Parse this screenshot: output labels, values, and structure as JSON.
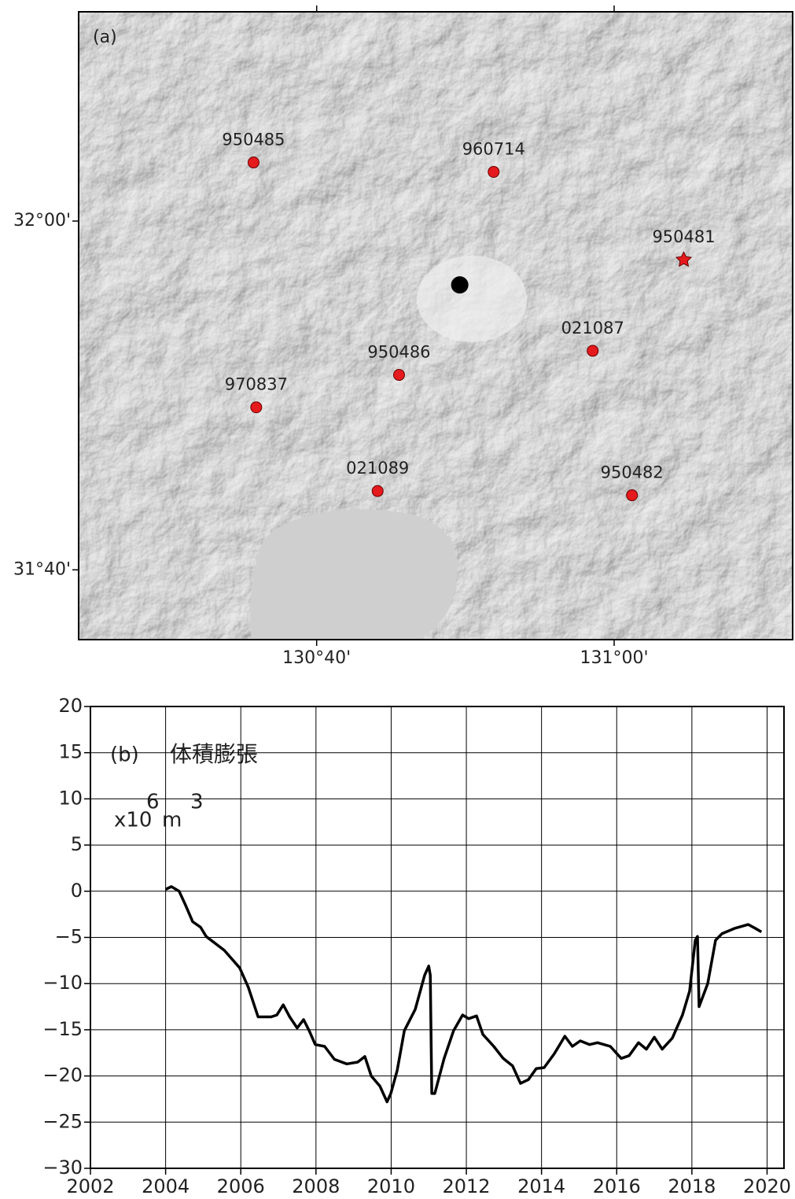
{
  "chart_data": [
    {
      "type": "scatter",
      "panel_label": "(a)",
      "labels": [
        "950485",
        "960714",
        "950481",
        "021087",
        "950486",
        "970837",
        "021089",
        "950482"
      ],
      "x": [
        130.596,
        130.865,
        131.078,
        130.976,
        130.759,
        130.599,
        130.735,
        131.02
      ],
      "y": [
        32.056,
        32.047,
        31.963,
        31.876,
        31.853,
        31.822,
        31.742,
        31.738
      ],
      "markers": [
        "circle",
        "circle",
        "star",
        "circle",
        "circle",
        "circle",
        "circle",
        "circle"
      ],
      "color": "#e41a1c",
      "vent": {
        "x": 130.827,
        "y": 31.939,
        "color": "#000000"
      },
      "xlim": [
        130.4,
        131.2
      ],
      "ylim": [
        31.6,
        32.2
      ],
      "xticks": [
        {
          "value": 130.6667,
          "label": "130°40'"
        },
        {
          "value": 131,
          "label": "131°00'"
        }
      ],
      "yticks": [
        {
          "value": 32,
          "label": "32°00'"
        },
        {
          "value": 31.6667,
          "label": "31°40'"
        }
      ]
    },
    {
      "type": "line",
      "panel_label": "(b)",
      "annotation": "体積膨張",
      "unit": {
        "base": "x10",
        "exponent": "6",
        "unit": "m",
        "unit_exponent": "3"
      },
      "color": "#000000",
      "x": [
        2004.0,
        2004.15,
        2004.36,
        2004.53,
        2004.72,
        2004.93,
        2005.08,
        2005.56,
        2005.97,
        2006.2,
        2006.46,
        2006.81,
        2006.96,
        2007.13,
        2007.3,
        2007.5,
        2007.67,
        2007.82,
        2007.98,
        2008.23,
        2008.49,
        2008.82,
        2009.11,
        2009.3,
        2009.47,
        2009.7,
        2009.89,
        2009.99,
        2010.16,
        2010.35,
        2010.64,
        2010.89,
        2011.0,
        2011.04,
        2011.08,
        2011.16,
        2011.41,
        2011.66,
        2011.9,
        2012.06,
        2012.27,
        2012.44,
        2012.73,
        2012.98,
        2013.23,
        2013.44,
        2013.65,
        2013.86,
        2014.07,
        2014.34,
        2014.62,
        2014.82,
        2015.03,
        2015.28,
        2015.49,
        2015.83,
        2016.12,
        2016.33,
        2016.58,
        2016.79,
        2017.0,
        2017.21,
        2017.48,
        2017.75,
        2017.94,
        2018.09,
        2018.15,
        2018.19,
        2018.42,
        2018.63,
        2018.8,
        2019.15,
        2019.5,
        2019.68,
        2019.85
      ],
      "values": [
        0.2,
        0.5,
        0,
        -1.5,
        -3.3,
        -3.9,
        -4.9,
        -6.4,
        -8.3,
        -10.4,
        -13.6,
        -13.6,
        -13.4,
        -12.3,
        -13.6,
        -14.8,
        -13.9,
        -15.1,
        -16.6,
        -16.8,
        -18.2,
        -18.7,
        -18.5,
        -17.9,
        -20.0,
        -21.1,
        -22.8,
        -21.9,
        -19.4,
        -15.1,
        -12.8,
        -9.1,
        -8.1,
        -9.1,
        -21.9,
        -21.9,
        -18.1,
        -15.1,
        -13.4,
        -13.8,
        -13.5,
        -15.5,
        -16.8,
        -18.1,
        -18.9,
        -20.8,
        -20.4,
        -19.2,
        -19.1,
        -17.6,
        -15.7,
        -16.8,
        -16.2,
        -16.6,
        -16.4,
        -16.8,
        -18.1,
        -17.8,
        -16.4,
        -17.1,
        -15.8,
        -17.1,
        -15.9,
        -13.4,
        -10.8,
        -5.3,
        -4.9,
        -12.5,
        -10.0,
        -5.3,
        -4.6,
        -4.0,
        -3.6,
        -4.0,
        -4.4
      ],
      "xlim": [
        2002,
        2020.45
      ],
      "ylim": [
        -30,
        20
      ],
      "xticks": [
        2002,
        2004,
        2006,
        2008,
        2010,
        2012,
        2014,
        2016,
        2018,
        2020
      ],
      "yticks": [
        20,
        15,
        10,
        5,
        0,
        {
          "value": -5,
          "label": "−5"
        },
        {
          "value": -10,
          "label": "−10"
        },
        {
          "value": -15,
          "label": "−15"
        },
        {
          "value": -20,
          "label": "−20"
        },
        {
          "value": -25,
          "label": "−25"
        },
        {
          "value": -30,
          "label": "−30"
        }
      ],
      "grid": true
    }
  ]
}
